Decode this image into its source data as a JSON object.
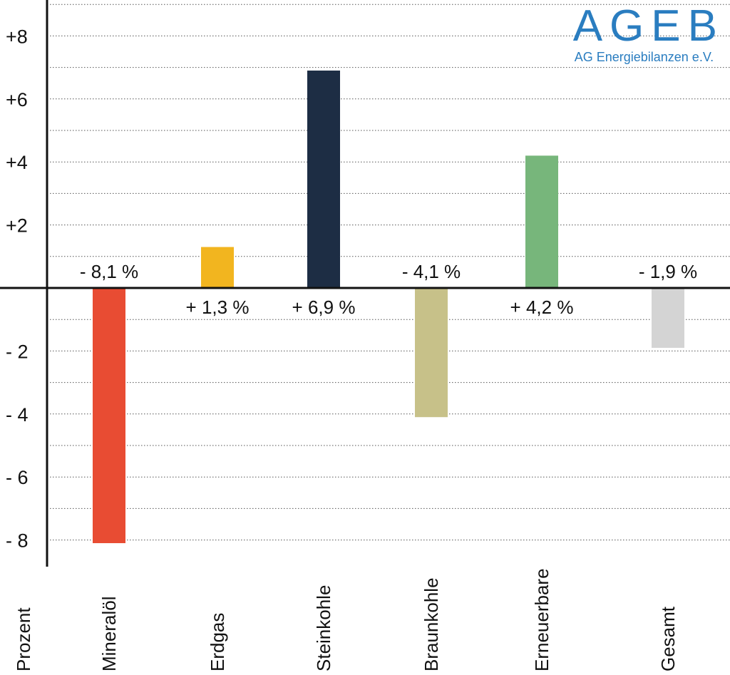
{
  "logo": {
    "main": "AGEB",
    "sub": "AG Energiebilanzen e.V."
  },
  "chart_data": {
    "type": "bar",
    "ylabel": "Prozent",
    "categories": [
      "Mineralöl",
      "Erdgas",
      "Steinkohle",
      "Braunkohle",
      "Erneuerbare",
      "Gesamt"
    ],
    "values": [
      -8.1,
      1.3,
      6.9,
      -4.1,
      4.2,
      -1.9
    ],
    "data_labels": [
      "- 8,1 %",
      "+ 1,3 %",
      "+ 6,9 %",
      "- 4,1 %",
      "+ 4,2 %",
      "- 1,9 %"
    ],
    "colors": [
      "#e84c33",
      "#f2b51f",
      "#1d2d44",
      "#c7c189",
      "#77b67b",
      "#d4d4d4"
    ],
    "ylim": [
      -8.9,
      9.1
    ],
    "yticks": [
      8,
      6,
      4,
      2,
      -2,
      -4,
      -6,
      -8
    ],
    "ytick_labels": [
      "+8",
      "+6",
      "+4",
      "+2",
      "- 2",
      "- 4",
      "- 6",
      "- 8"
    ],
    "grid": true
  }
}
